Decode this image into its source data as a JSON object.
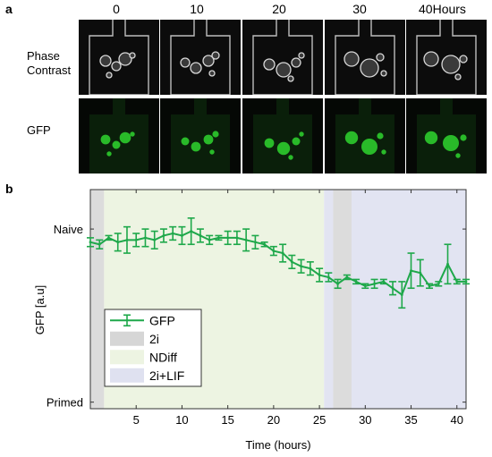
{
  "panel_a": {
    "letter": "a",
    "time_labels": [
      "0",
      "10",
      "20",
      "30",
      "40"
    ],
    "time_unit": "Hours",
    "rows": [
      {
        "label_lines": [
          "Phase",
          "Contrast"
        ],
        "channel": "phase"
      },
      {
        "label_lines": [
          "GFP"
        ],
        "channel": "gfp"
      }
    ],
    "colors": {
      "phase_bg": "#0c0c0c",
      "phase_fg": "#d8d8d8",
      "gfp_bg": "#0a1f0a",
      "gfp_fg": "#2fd62f"
    }
  },
  "panel_b": {
    "letter": "b"
  },
  "chart_data": {
    "type": "line",
    "xlabel": "Time (hours)",
    "ylabel": "GFP [a.u]",
    "xlim": [
      0,
      41
    ],
    "xticks": [
      5,
      10,
      15,
      20,
      25,
      30,
      35,
      40
    ],
    "ylim": [
      0,
      1
    ],
    "yticks": [
      {
        "value": 0.03,
        "label": "Primed"
      },
      {
        "value": 0.82,
        "label": "Naive"
      }
    ],
    "background_regions": [
      {
        "name": "2i",
        "from": 0,
        "to": 1.5,
        "color": "#dcdcdc"
      },
      {
        "name": "NDiff",
        "from": 1.5,
        "to": 25.5,
        "color": "#edf4e2"
      },
      {
        "name": "2i+LIF",
        "from": 25.5,
        "to": 41,
        "color": "#e2e4f2"
      },
      {
        "name": "2i",
        "from": 26.5,
        "to": 28.5,
        "color": "#dcdcdc"
      }
    ],
    "series": [
      {
        "name": "GFP",
        "color": "#1ea84a",
        "x": [
          0,
          1,
          2,
          3,
          4,
          5,
          6,
          7,
          8,
          9,
          10,
          11,
          12,
          13,
          14,
          15,
          16,
          17,
          18,
          19,
          20,
          21,
          22,
          23,
          24,
          25,
          26,
          27,
          28,
          29,
          30,
          31,
          32,
          33,
          34,
          35,
          36,
          37,
          38,
          39,
          40,
          41
        ],
        "y": [
          0.76,
          0.75,
          0.78,
          0.76,
          0.77,
          0.77,
          0.78,
          0.77,
          0.79,
          0.8,
          0.79,
          0.81,
          0.79,
          0.77,
          0.78,
          0.78,
          0.78,
          0.77,
          0.76,
          0.75,
          0.72,
          0.71,
          0.67,
          0.65,
          0.64,
          0.61,
          0.6,
          0.57,
          0.6,
          0.58,
          0.56,
          0.57,
          0.58,
          0.55,
          0.52,
          0.63,
          0.62,
          0.56,
          0.57,
          0.66,
          0.58,
          0.58
        ],
        "err": [
          0.02,
          0.02,
          0.01,
          0.04,
          0.06,
          0.03,
          0.04,
          0.04,
          0.03,
          0.03,
          0.04,
          0.06,
          0.03,
          0.02,
          0.01,
          0.03,
          0.03,
          0.05,
          0.03,
          0.01,
          0.02,
          0.04,
          0.03,
          0.03,
          0.03,
          0.03,
          0.02,
          0.02,
          0.01,
          0.01,
          0.01,
          0.02,
          0.01,
          0.03,
          0.06,
          0.08,
          0.06,
          0.01,
          0.01,
          0.09,
          0.01,
          0.01
        ]
      }
    ],
    "legend": {
      "placement": "lower-left",
      "entries": [
        {
          "label": "GFP",
          "kind": "line",
          "color": "#1ea84a"
        },
        {
          "label": "2i",
          "kind": "patch",
          "color": "#d6d6d6"
        },
        {
          "label": "NDiff",
          "kind": "patch",
          "color": "#edf4e2"
        },
        {
          "label": "2i+LIF",
          "kind": "patch",
          "color": "#dfe1f0"
        }
      ]
    },
    "grid": false
  }
}
